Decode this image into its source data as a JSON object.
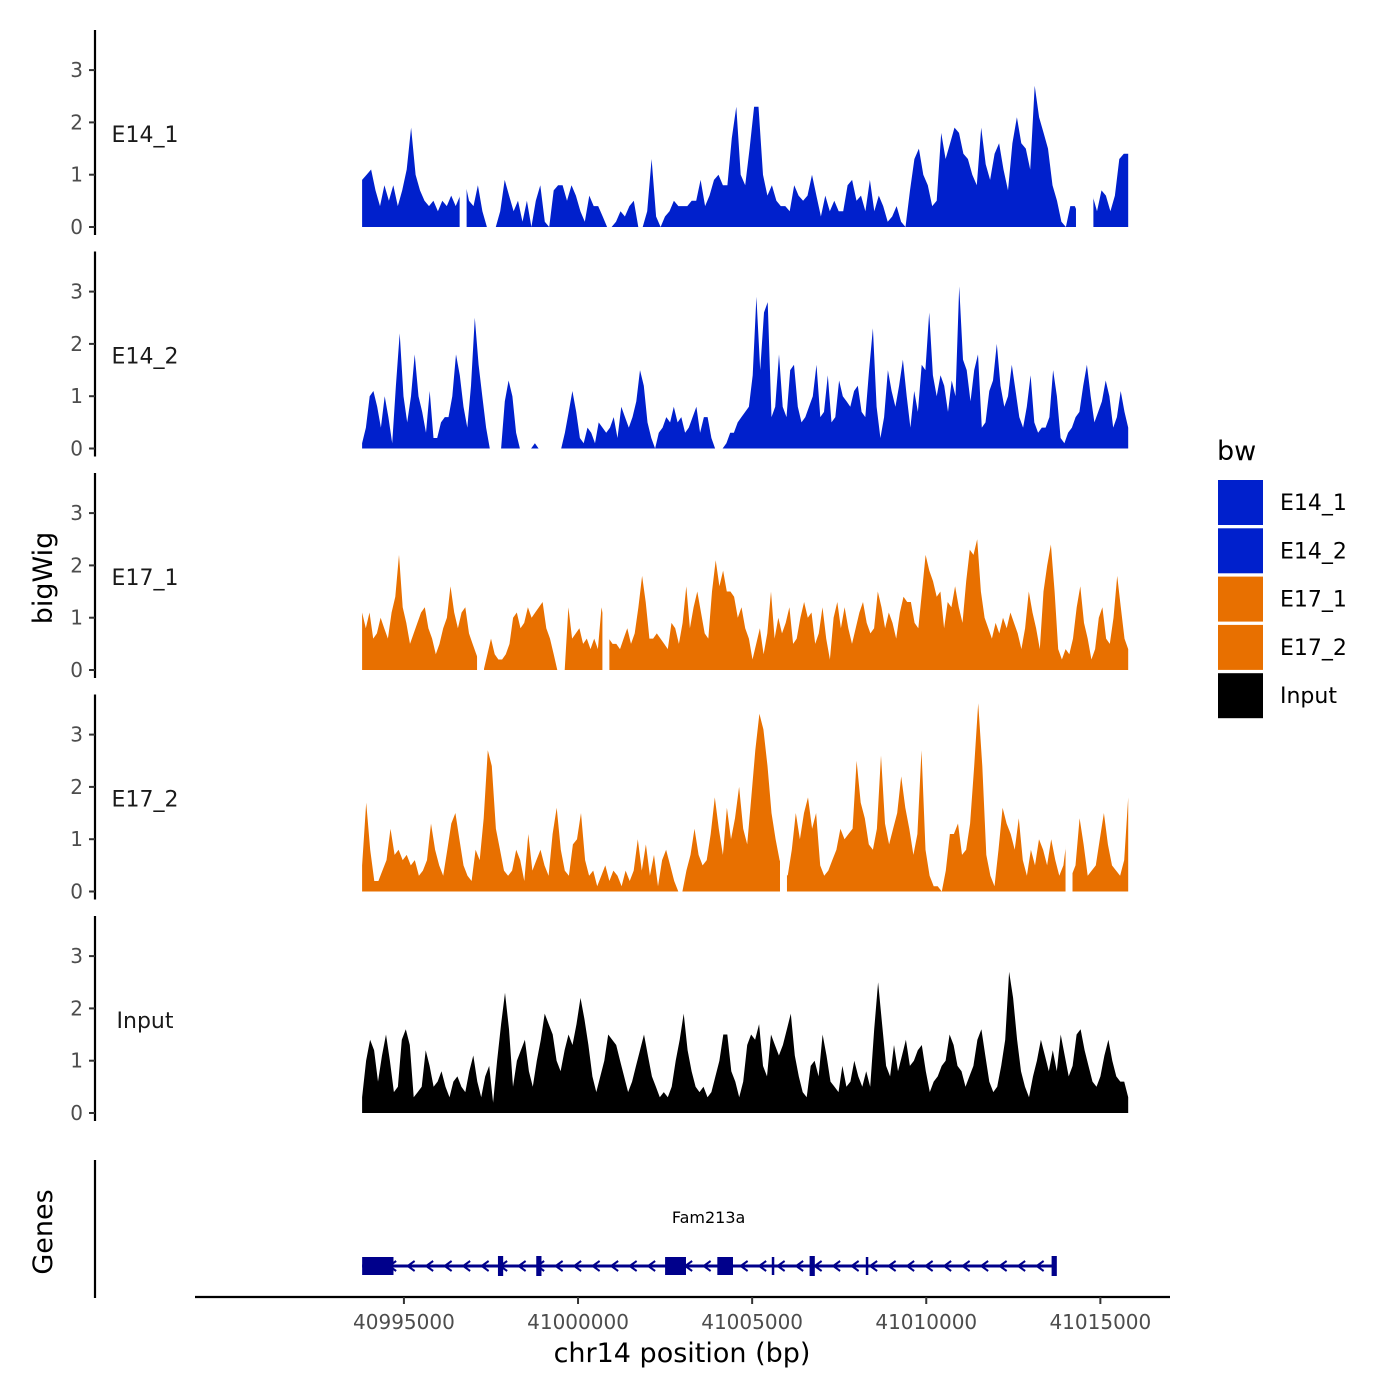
{
  "chart_data": {
    "type": "area",
    "y_axis_title": "bigWig",
    "x_axis_title": "chr14 position (bp)",
    "genes_axis_title": "Genes",
    "x_range": [
      40993800,
      41015800
    ],
    "x_axis_domain": [
      40989000,
      41017000
    ],
    "x_ticks": [
      40995000,
      41000000,
      41005000,
      41010000,
      41015000
    ],
    "x_tick_labels": [
      "40995000",
      "41000000",
      "41005000",
      "41010000",
      "41015000"
    ],
    "y_range": [
      0,
      3.6
    ],
    "y_ticks": [
      0,
      1,
      2,
      3
    ],
    "y_tick_labels": [
      "0",
      "1",
      "2",
      "3"
    ],
    "legend": {
      "title": "bw",
      "position": "right",
      "entries": [
        {
          "label": "E14_1",
          "color": "#0020CC"
        },
        {
          "label": "E14_2",
          "color": "#0020CC"
        },
        {
          "label": "E17_1",
          "color": "#E87000"
        },
        {
          "label": "E17_2",
          "color": "#E87000"
        },
        {
          "label": "Input",
          "color": "#000000"
        }
      ]
    },
    "tracks": [
      {
        "name": "E14_1",
        "color": "#0020CC",
        "values": [
          0.9,
          1.0,
          1.1,
          0.7,
          0.4,
          0.8,
          0.5,
          0.8,
          0.4,
          0.7,
          1.1,
          1.9,
          1.0,
          0.7,
          0.5,
          0.4,
          0.5,
          0.3,
          0.5,
          0.4,
          0.6,
          0.4,
          0.6,
          0.9,
          0.5,
          0.4,
          0.8,
          0.3,
          0,
          0,
          0,
          0.3,
          0.9,
          0.6,
          0.3,
          0.5,
          0.1,
          0.5,
          0,
          0.5,
          0.8,
          0.1,
          0,
          0.7,
          0.8,
          0.8,
          0.5,
          0.8,
          0.6,
          0.3,
          0.1,
          0.6,
          0.4,
          0.4,
          0.2,
          0,
          0,
          0.1,
          0.3,
          0.2,
          0.4,
          0.5,
          0,
          0,
          0.3,
          1.3,
          0.2,
          0,
          0.2,
          0.3,
          0.5,
          0.4,
          0.4,
          0.4,
          0.5,
          0.5,
          0.9,
          0.4,
          0.6,
          0.9,
          1.0,
          0.8,
          0.8,
          1.7,
          2.3,
          1.0,
          0.8,
          1.5,
          2.3,
          2.3,
          1.0,
          0.6,
          0.8,
          0.5,
          0.4,
          0.4,
          0.3,
          0.8,
          0.6,
          0.5,
          0.6,
          1.0,
          0.6,
          0.2,
          0.6,
          0.3,
          0.5,
          0.3,
          0.3,
          0.8,
          0.9,
          0.5,
          0.6,
          0.3,
          0.9,
          0.3,
          0.6,
          0.4,
          0.1,
          0.2,
          0.4,
          0.1,
          0,
          0.7,
          1.3,
          1.5,
          1.0,
          0.8,
          0.4,
          0.5,
          1.8,
          1.3,
          1.6,
          1.9,
          1.8,
          1.4,
          1.3,
          1.0,
          0.8,
          1.9,
          1.2,
          0.9,
          1.4,
          1.6,
          1.1,
          0.7,
          1.6,
          2.1,
          1.6,
          1.5,
          1.1,
          2.7,
          2.1,
          1.8,
          1.5,
          0.8,
          0.5,
          0.1,
          0,
          0.4,
          0.4,
          0.2,
          0,
          0.6,
          0.6,
          0.3,
          0.7,
          0.6,
          0.3,
          0.6,
          1.3,
          1.4,
          1.4
        ],
        "gaps": [
          [
            40996600,
            40996800
          ],
          [
            41014300,
            41014800
          ]
        ]
      },
      {
        "name": "E14_2",
        "color": "#0020CC",
        "values": [
          0.1,
          0.4,
          1.0,
          1.1,
          0.8,
          0.4,
          1.0,
          0.6,
          0.1,
          1.2,
          2.2,
          1.0,
          0.5,
          1.0,
          1.8,
          1.0,
          0.7,
          0.3,
          1.1,
          0.2,
          0.2,
          0.5,
          0.6,
          0.6,
          1.0,
          1.8,
          1.4,
          0.8,
          0.4,
          1.2,
          2.5,
          1.6,
          1.0,
          0.4,
          0,
          0,
          0,
          0,
          0.9,
          1.3,
          1.0,
          0.3,
          0,
          0,
          0,
          0,
          0.1,
          0,
          0,
          0,
          0,
          0,
          0,
          0,
          0.3,
          0.7,
          1.1,
          0.7,
          0.2,
          0.1,
          0.4,
          0.3,
          0.1,
          0.5,
          0.4,
          0.3,
          0.4,
          0.6,
          0.2,
          0.8,
          0.6,
          0.4,
          0.6,
          0.9,
          1.5,
          1.2,
          0.5,
          0.2,
          0,
          0.3,
          0.4,
          0.6,
          0.5,
          0.8,
          0.5,
          0.6,
          0.3,
          0.4,
          0.6,
          0.8,
          0.3,
          0.6,
          0.6,
          0.2,
          0,
          0,
          0,
          0.1,
          0.3,
          0.3,
          0.5,
          0.6,
          0.7,
          0.8,
          1.4,
          2.9,
          1.5,
          2.6,
          2.8,
          0.6,
          0.8,
          1.8,
          0.8,
          0.6,
          1.5,
          1.6,
          0.8,
          0.5,
          0.6,
          0.8,
          1.0,
          1.6,
          0.6,
          0.7,
          1.4,
          0.5,
          0.6,
          1.3,
          1.0,
          0.9,
          0.8,
          1.1,
          1.2,
          0.7,
          0.6,
          1.5,
          2.3,
          0.8,
          0.2,
          0.6,
          1.5,
          1.1,
          0.8,
          1.2,
          1.7,
          1.0,
          0.4,
          1.1,
          0.7,
          1.6,
          1.5,
          2.6,
          1.4,
          1.0,
          1.4,
          1.2,
          0.7,
          1.3,
          1.0,
          3.1,
          1.7,
          1.5,
          0.9,
          1.5,
          1.8,
          0.4,
          0.5,
          1.1,
          1.3,
          2.0,
          1.2,
          0.8,
          1.0,
          1.6,
          1.1,
          0.6,
          0.4,
          0.8,
          1.4,
          0.5,
          0.3,
          0.4,
          0.4,
          0.6,
          1.5,
          1.0,
          0.2,
          0.1,
          0.3,
          0.4,
          0.6,
          0.7,
          1.2,
          1.6,
          1.0,
          0.5,
          0.7,
          0.9,
          1.3,
          1.0,
          0.4,
          0.6,
          1.1,
          0.7,
          0.4
        ],
        "gaps": []
      },
      {
        "name": "E17_1",
        "color": "#E87000",
        "values": [
          1.1,
          0.8,
          1.1,
          0.6,
          0.7,
          1.0,
          0.8,
          0.6,
          1.1,
          1.4,
          2.2,
          1.2,
          0.9,
          0.5,
          0.7,
          0.9,
          1.1,
          1.2,
          0.8,
          0.6,
          0.3,
          0.5,
          0.8,
          1.0,
          1.6,
          1.1,
          0.8,
          1.1,
          1.2,
          0.7,
          0.5,
          0.3,
          0.1,
          0,
          0.3,
          0.6,
          0.3,
          0.2,
          0.2,
          0.3,
          0.5,
          1.0,
          1.1,
          0.8,
          0.9,
          1.2,
          1.0,
          1.1,
          1.2,
          1.3,
          0.8,
          0.6,
          0.3,
          0,
          0,
          0,
          1.2,
          0.6,
          0.7,
          0.8,
          0.5,
          0.6,
          0.4,
          0.6,
          0.4,
          1.2,
          0.8,
          0.6,
          0.5,
          0.5,
          0.4,
          0.6,
          0.8,
          0.5,
          0.7,
          1.2,
          1.8,
          1.3,
          0.6,
          0.6,
          0.7,
          0.6,
          0.5,
          0.4,
          0.9,
          0.8,
          0.5,
          0.9,
          1.6,
          0.8,
          1.2,
          1.5,
          1.1,
          0.7,
          0.6,
          1.5,
          2.1,
          1.6,
          1.9,
          1.5,
          1.5,
          1.4,
          1.0,
          1.2,
          0.8,
          0.6,
          0.2,
          0.5,
          0.8,
          0.3,
          0.7,
          1.5,
          0.6,
          1.0,
          0.7,
          0.9,
          1.2,
          0.5,
          0.6,
          1.0,
          1.3,
          1.0,
          1.1,
          0.5,
          0.7,
          1.2,
          0.6,
          0.2,
          1.0,
          1.3,
          0.8,
          1.2,
          0.8,
          0.5,
          0.8,
          1.1,
          1.3,
          0.9,
          0.7,
          0.8,
          1.5,
          1.2,
          0.8,
          1.1,
          0.9,
          0.6,
          1.1,
          1.4,
          1.3,
          1.3,
          0.9,
          0.8,
          1.5,
          2.2,
          1.9,
          1.7,
          1.4,
          1.5,
          0.8,
          1.3,
          1.2,
          1.6,
          1.2,
          0.9,
          1.7,
          2.3,
          2.2,
          2.5,
          1.5,
          1.0,
          0.8,
          0.6,
          0.9,
          0.7,
          1.0,
          0.8,
          1.1,
          0.9,
          0.7,
          0.4,
          0.8,
          1.5,
          1.1,
          0.8,
          0.4,
          1.5,
          2.0,
          2.4,
          1.5,
          0.4,
          0.2,
          0.4,
          0.3,
          0.6,
          1.2,
          1.6,
          0.9,
          0.6,
          0.2,
          0.4,
          1.0,
          1.2,
          0.6,
          0.5,
          1.0,
          1.8,
          1.2,
          0.6,
          0.4
        ],
        "gaps": [
          [
            40997100,
            40997300
          ],
          [
            41000700,
            41000900
          ]
        ]
      },
      {
        "name": "E17_2",
        "color": "#E87000",
        "values": [
          0.5,
          1.7,
          0.8,
          0.2,
          0.2,
          0.4,
          0.6,
          1.2,
          0.7,
          0.8,
          0.6,
          0.7,
          0.5,
          0.6,
          0.3,
          0.4,
          0.6,
          1.3,
          0.8,
          0.5,
          0.3,
          0.8,
          1.3,
          1.5,
          1.0,
          0.5,
          0.3,
          0.2,
          0.8,
          0.6,
          1.4,
          2.7,
          2.4,
          1.2,
          0.8,
          0.4,
          0.3,
          0.4,
          0.8,
          0.6,
          0.2,
          1.1,
          0.4,
          0.6,
          0.8,
          0.5,
          0.3,
          1.1,
          1.6,
          0.8,
          0.4,
          0.3,
          0.9,
          1.0,
          1.5,
          0.6,
          0.3,
          0.4,
          0.1,
          0.3,
          0.5,
          0.2,
          0.4,
          0.3,
          0.1,
          0.4,
          0.2,
          0.4,
          1.0,
          0.4,
          0.9,
          0.3,
          0.7,
          0.1,
          0.6,
          0.8,
          0.5,
          0.2,
          0,
          0,
          0.4,
          0.7,
          1.2,
          0.7,
          0.5,
          0.6,
          1.1,
          1.8,
          1.2,
          0.7,
          1.6,
          1.0,
          1.4,
          2.0,
          1.2,
          0.9,
          1.8,
          2.7,
          3.4,
          3.1,
          2.4,
          1.5,
          1.0,
          0.6,
          0.4,
          0.3,
          0.8,
          1.5,
          1.0,
          1.5,
          1.8,
          1.2,
          1.5,
          0.5,
          0.3,
          0.4,
          0.6,
          0.8,
          1.2,
          1.0,
          1.1,
          1.2,
          2.5,
          1.7,
          1.4,
          0.9,
          0.8,
          1.2,
          2.6,
          1.3,
          0.9,
          1.2,
          1.5,
          2.2,
          1.6,
          1.2,
          0.7,
          1.1,
          2.7,
          0.8,
          0.3,
          0.1,
          0.1,
          0,
          0.4,
          1.1,
          1.1,
          1.3,
          0.7,
          0.8,
          1.3,
          2.4,
          3.6,
          2.4,
          0.7,
          0.3,
          0.1,
          0.8,
          1.6,
          1.3,
          1.1,
          0.8,
          1.4,
          0.6,
          0.3,
          0.8,
          0.5,
          1.0,
          0.8,
          0.5,
          1.0,
          0.6,
          0.3,
          0.5,
          1.1,
          0.3,
          0.5,
          1.4,
          0.9,
          0.3,
          0.4,
          0.5,
          1.0,
          1.5,
          0.9,
          0.5,
          0.4,
          0.3,
          0.6,
          1.8
        ],
        "gaps": [
          [
            41005800,
            41006000
          ],
          [
            41014000,
            41014200
          ]
        ]
      },
      {
        "name": "Input",
        "color": "#000000",
        "values": [
          0.3,
          1.0,
          1.4,
          1.2,
          0.6,
          1.1,
          1.5,
          1.0,
          0.4,
          0.5,
          1.4,
          1.6,
          1.3,
          0.3,
          0.4,
          0.5,
          1.2,
          0.9,
          0.5,
          0.6,
          0.8,
          0.5,
          0.3,
          0.6,
          0.7,
          0.5,
          0.4,
          0.8,
          1.1,
          0.6,
          0.3,
          0.7,
          0.9,
          0.2,
          1.0,
          1.7,
          2.3,
          1.6,
          0.5,
          1.0,
          1.2,
          1.4,
          0.8,
          0.5,
          1.0,
          1.4,
          1.9,
          1.7,
          1.5,
          1.0,
          0.8,
          1.2,
          1.5,
          1.3,
          1.7,
          2.2,
          1.8,
          1.3,
          0.7,
          0.4,
          0.7,
          1.0,
          1.5,
          1.4,
          1.3,
          1.0,
          0.7,
          0.4,
          0.6,
          0.9,
          1.2,
          1.5,
          1.1,
          0.7,
          0.5,
          0.3,
          0.4,
          0.3,
          0.5,
          1.0,
          1.4,
          1.9,
          1.2,
          0.8,
          0.5,
          0.4,
          0.5,
          0.3,
          0.4,
          0.7,
          1.0,
          1.5,
          1.5,
          0.8,
          0.6,
          0.3,
          0.6,
          1.3,
          1.5,
          1.4,
          1.7,
          0.9,
          0.7,
          1.5,
          1.3,
          1.1,
          1.3,
          1.6,
          1.9,
          1.1,
          0.7,
          0.4,
          0.3,
          0.9,
          1.0,
          0.7,
          1.5,
          1.1,
          0.6,
          0.5,
          0.4,
          0.9,
          0.5,
          0.6,
          1.0,
          0.7,
          0.5,
          0.8,
          0.5,
          1.6,
          2.5,
          1.7,
          0.9,
          0.7,
          1.3,
          0.8,
          1.1,
          1.4,
          0.9,
          1.0,
          1.2,
          1.3,
          0.8,
          0.4,
          0.6,
          0.7,
          0.9,
          1.0,
          1.5,
          1.3,
          0.9,
          0.8,
          0.5,
          0.7,
          0.9,
          1.4,
          1.6,
          1.1,
          0.6,
          0.4,
          0.5,
          0.9,
          1.4,
          2.7,
          2.2,
          1.4,
          0.8,
          0.5,
          0.3,
          0.7,
          1.0,
          1.4,
          1.1,
          0.8,
          1.2,
          0.8,
          1.5,
          1.1,
          0.7,
          0.9,
          1.5,
          1.6,
          1.2,
          0.9,
          0.6,
          0.5,
          0.7,
          1.1,
          1.4,
          1.0,
          0.7,
          0.6,
          0.6,
          0.3
        ],
        "gaps": []
      }
    ],
    "genes": [
      {
        "name": "Fam213a",
        "strand": "-",
        "start": 40993800,
        "end": 41013700,
        "color": "#00008B",
        "exons": [
          [
            40993800,
            40994700
          ],
          [
            40997700,
            40997850
          ],
          [
            40998800,
            40998950
          ],
          [
            41002500,
            41003100
          ],
          [
            41004000,
            41004450
          ],
          [
            41006650,
            41006800
          ],
          [
            41013600,
            41013750
          ]
        ],
        "small_ticks": [
          41005600,
          41008300
        ]
      }
    ]
  }
}
